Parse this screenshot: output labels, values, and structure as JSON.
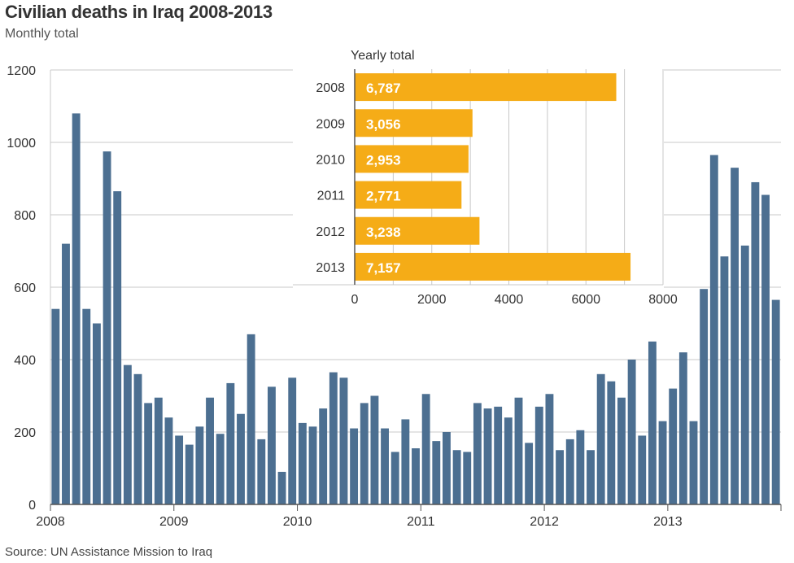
{
  "title": "Civilian deaths in Iraq 2008-2013",
  "subtitle": "Monthly total",
  "source": "Source: UN Assistance Mission to Iraq",
  "colors": {
    "monthly_bar": "#4c6f91",
    "yearly_bar": "#f5ac17",
    "grid": "#c8c8c8",
    "axis": "#555555"
  },
  "chart_data": [
    {
      "type": "bar",
      "name": "monthly",
      "title": "Civilian deaths in Iraq 2008-2013",
      "subtitle": "Monthly total",
      "ylim": [
        0,
        1200
      ],
      "yticks": [
        0,
        200,
        400,
        600,
        800,
        1000,
        1200
      ],
      "x_tick_labels": [
        "2008",
        "2009",
        "2010",
        "2011",
        "2012",
        "2013"
      ],
      "grid": true,
      "values": [
        540,
        720,
        1080,
        540,
        500,
        975,
        865,
        385,
        360,
        280,
        295,
        240,
        190,
        165,
        215,
        295,
        195,
        335,
        250,
        470,
        180,
        325,
        90,
        350,
        225,
        215,
        265,
        365,
        350,
        210,
        280,
        300,
        210,
        145,
        235,
        155,
        305,
        175,
        200,
        150,
        145,
        280,
        265,
        270,
        240,
        295,
        170,
        270,
        305,
        150,
        180,
        205,
        150,
        360,
        340,
        295,
        400,
        190,
        450,
        230,
        320,
        420,
        230,
        595,
        965,
        685,
        930,
        715,
        890,
        855,
        565
      ]
    },
    {
      "type": "bar",
      "orientation": "horizontal",
      "name": "yearly",
      "title": "Yearly total",
      "categories": [
        "2008",
        "2009",
        "2010",
        "2011",
        "2012",
        "2013"
      ],
      "values": [
        6787,
        3056,
        2953,
        2771,
        3238,
        7157
      ],
      "value_labels": [
        "6,787",
        "3,056",
        "2,953",
        "2,771",
        "3,238",
        "7,157"
      ],
      "xlim": [
        0,
        8000
      ],
      "xticks": [
        0,
        2000,
        4000,
        6000,
        8000
      ],
      "grid": true
    }
  ]
}
